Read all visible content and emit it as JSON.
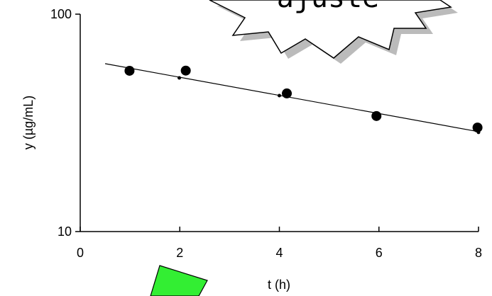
{
  "chart_data": {
    "type": "scatter",
    "x_label": "t (h)",
    "y_label": "y (µg/mL)",
    "annotation": "ajuste",
    "xlim": [
      0,
      8
    ],
    "ylim": [
      10,
      100
    ],
    "y_scale": "log",
    "xticks": [
      0,
      2,
      4,
      6,
      8
    ],
    "yticks": [
      10,
      100
    ],
    "grid": false,
    "series": [
      {
        "color": "#000000",
        "marker": "large-dot",
        "x": [
          0.99,
          2.12,
          4.15,
          5.95,
          7.98
        ],
        "values": [
          54.9,
          55,
          43.2,
          34,
          30.1
        ]
      },
      {
        "color": "#000000",
        "marker": "small-dot",
        "x": [
          1.99,
          4.0,
          8.0
        ],
        "values": [
          50.9,
          42.2,
          28.6
        ]
      },
      {
        "color": "#000000",
        "marker": "line",
        "x": [
          0.5,
          8
        ],
        "values": [
          59.2,
          28.8
        ]
      }
    ]
  }
}
